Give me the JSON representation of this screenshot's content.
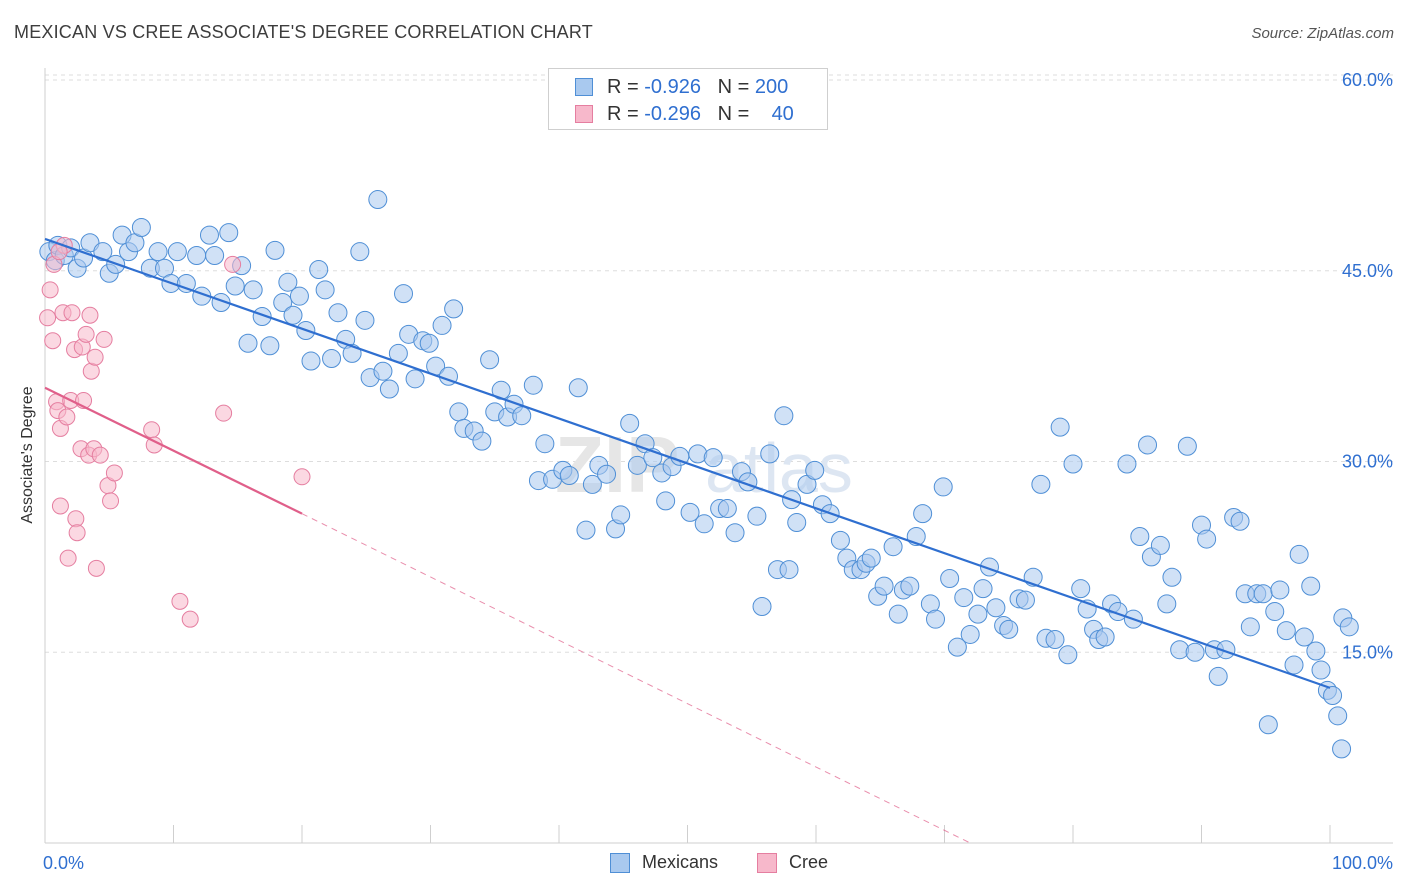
{
  "title": "MEXICAN VS CREE ASSOCIATE'S DEGREE CORRELATION CHART",
  "source": "Source: ZipAtlas.com",
  "legend": {
    "mexicans": {
      "r_label": "R = ",
      "r_value": "-0.926",
      "n_label": "N = ",
      "n_value": "200"
    },
    "cree": {
      "r_label": "R = ",
      "r_value": "-0.296",
      "n_label": "N = ",
      "n_value": "40"
    }
  },
  "bottom_legend": {
    "mexicans": "Mexicans",
    "cree": "Cree"
  },
  "colors": {
    "mexicans_fill": "#a9c9ef",
    "mexicans_stroke": "#4f8fd6",
    "mexicans_line": "#2f6fd0",
    "cree_fill": "#f7b8cb",
    "cree_stroke": "#e57ea0",
    "cree_line": "#e05f8a",
    "tick_label": "#2f6fd0",
    "grid": "#dddddd"
  },
  "chart_data": {
    "type": "scatter",
    "xlabel": "",
    "ylabel": "Associate's Degree",
    "xlim": [
      0,
      100
    ],
    "ylim": [
      0,
      60
    ],
    "x_tick_labels": [
      "0.0%",
      "100.0%"
    ],
    "y_ticks": [
      15,
      30,
      45,
      60
    ],
    "y_tick_labels": [
      "15.0%",
      "30.0%",
      "45.0%",
      "60.0%"
    ],
    "grid": "horizontal dashed",
    "legend_position": "top-center",
    "series": [
      {
        "name": "Mexicans",
        "r": -0.926,
        "n": 200,
        "trend": {
          "x": [
            0,
            100
          ],
          "y": [
            47.5,
            12.2
          ],
          "style": "solid"
        },
        "points": [
          [
            0.3,
            46.5
          ],
          [
            0.8,
            45.8
          ],
          [
            1.0,
            47.0
          ],
          [
            1.5,
            46.2
          ],
          [
            2.0,
            46.8
          ],
          [
            2.5,
            45.2
          ],
          [
            3.0,
            46.0
          ],
          [
            3.5,
            47.2
          ],
          [
            4.5,
            46.5
          ],
          [
            5.0,
            44.8
          ],
          [
            5.5,
            45.5
          ],
          [
            6.0,
            47.8
          ],
          [
            6.5,
            46.5
          ],
          [
            7.0,
            47.2
          ],
          [
            7.5,
            48.4
          ],
          [
            8.2,
            45.2
          ],
          [
            8.8,
            46.5
          ],
          [
            9.3,
            45.2
          ],
          [
            9.8,
            44.0
          ],
          [
            10.3,
            46.5
          ],
          [
            11.0,
            44.0
          ],
          [
            11.8,
            46.2
          ],
          [
            12.2,
            43.0
          ],
          [
            12.8,
            47.8
          ],
          [
            13.2,
            46.2
          ],
          [
            13.7,
            42.5
          ],
          [
            14.3,
            48.0
          ],
          [
            14.8,
            43.8
          ],
          [
            15.3,
            45.4
          ],
          [
            15.8,
            39.3
          ],
          [
            16.2,
            43.5
          ],
          [
            16.9,
            41.4
          ],
          [
            17.5,
            39.1
          ],
          [
            17.9,
            46.6
          ],
          [
            18.5,
            42.5
          ],
          [
            18.9,
            44.1
          ],
          [
            19.3,
            41.5
          ],
          [
            19.8,
            43.0
          ],
          [
            20.3,
            40.3
          ],
          [
            20.7,
            37.9
          ],
          [
            21.3,
            45.1
          ],
          [
            21.8,
            43.5
          ],
          [
            22.3,
            38.1
          ],
          [
            22.8,
            41.7
          ],
          [
            23.4,
            39.6
          ],
          [
            23.9,
            38.5
          ],
          [
            24.5,
            46.5
          ],
          [
            24.9,
            41.1
          ],
          [
            25.3,
            36.6
          ],
          [
            25.9,
            50.6
          ],
          [
            26.3,
            37.1
          ],
          [
            26.8,
            35.7
          ],
          [
            27.5,
            38.5
          ],
          [
            27.9,
            43.2
          ],
          [
            28.3,
            40.0
          ],
          [
            28.8,
            36.5
          ],
          [
            29.4,
            39.5
          ],
          [
            29.9,
            39.3
          ],
          [
            30.4,
            37.5
          ],
          [
            30.9,
            40.7
          ],
          [
            31.4,
            36.7
          ],
          [
            31.8,
            42.0
          ],
          [
            32.2,
            33.9
          ],
          [
            32.6,
            32.6
          ],
          [
            33.4,
            32.4
          ],
          [
            34.0,
            31.6
          ],
          [
            34.6,
            38.0
          ],
          [
            35.0,
            33.9
          ],
          [
            35.5,
            35.6
          ],
          [
            36.0,
            33.5
          ],
          [
            36.5,
            34.5
          ],
          [
            37.1,
            33.6
          ],
          [
            38.0,
            36.0
          ],
          [
            38.4,
            28.5
          ],
          [
            38.9,
            31.4
          ],
          [
            39.5,
            28.6
          ],
          [
            40.3,
            29.3
          ],
          [
            40.8,
            28.9
          ],
          [
            41.5,
            35.8
          ],
          [
            42.1,
            24.6
          ],
          [
            42.6,
            28.2
          ],
          [
            43.1,
            29.7
          ],
          [
            43.7,
            29.0
          ],
          [
            44.4,
            24.7
          ],
          [
            44.8,
            25.8
          ],
          [
            45.5,
            33.0
          ],
          [
            46.1,
            29.7
          ],
          [
            46.7,
            31.4
          ],
          [
            47.3,
            30.3
          ],
          [
            48.0,
            29.1
          ],
          [
            48.3,
            26.9
          ],
          [
            48.8,
            29.6
          ],
          [
            49.4,
            30.4
          ],
          [
            50.2,
            26.0
          ],
          [
            50.8,
            30.6
          ],
          [
            51.3,
            25.1
          ],
          [
            52.0,
            30.3
          ],
          [
            52.5,
            26.3
          ],
          [
            53.1,
            26.3
          ],
          [
            53.7,
            24.4
          ],
          [
            54.2,
            29.2
          ],
          [
            54.7,
            28.4
          ],
          [
            55.4,
            25.7
          ],
          [
            55.8,
            18.6
          ],
          [
            56.4,
            30.6
          ],
          [
            57.0,
            21.5
          ],
          [
            57.5,
            33.6
          ],
          [
            57.9,
            21.5
          ],
          [
            58.1,
            27.0
          ],
          [
            58.5,
            25.2
          ],
          [
            59.3,
            28.2
          ],
          [
            59.9,
            29.3
          ],
          [
            60.5,
            26.6
          ],
          [
            61.1,
            25.9
          ],
          [
            61.9,
            23.8
          ],
          [
            62.4,
            22.4
          ],
          [
            62.9,
            21.5
          ],
          [
            63.5,
            21.5
          ],
          [
            63.9,
            22.0
          ],
          [
            64.3,
            22.4
          ],
          [
            64.8,
            19.4
          ],
          [
            65.3,
            20.2
          ],
          [
            66.0,
            23.3
          ],
          [
            66.4,
            18.0
          ],
          [
            66.8,
            19.9
          ],
          [
            67.3,
            20.2
          ],
          [
            67.8,
            24.1
          ],
          [
            68.3,
            25.9
          ],
          [
            68.9,
            18.8
          ],
          [
            69.3,
            17.6
          ],
          [
            69.9,
            28.0
          ],
          [
            70.4,
            20.8
          ],
          [
            71.0,
            15.4
          ],
          [
            71.5,
            19.3
          ],
          [
            72.0,
            16.4
          ],
          [
            72.6,
            18.0
          ],
          [
            73.0,
            20.0
          ],
          [
            73.5,
            21.7
          ],
          [
            74.0,
            18.5
          ],
          [
            74.6,
            17.1
          ],
          [
            75.0,
            16.8
          ],
          [
            75.8,
            19.2
          ],
          [
            76.3,
            19.1
          ],
          [
            76.9,
            20.9
          ],
          [
            77.5,
            28.2
          ],
          [
            77.9,
            16.1
          ],
          [
            78.6,
            16.0
          ],
          [
            79.0,
            32.7
          ],
          [
            79.6,
            14.8
          ],
          [
            80.0,
            29.8
          ],
          [
            80.6,
            20.0
          ],
          [
            81.1,
            18.4
          ],
          [
            81.6,
            16.8
          ],
          [
            82.0,
            16.0
          ],
          [
            82.5,
            16.2
          ],
          [
            83.0,
            18.8
          ],
          [
            83.5,
            18.2
          ],
          [
            84.2,
            29.8
          ],
          [
            84.7,
            17.6
          ],
          [
            85.2,
            24.1
          ],
          [
            85.8,
            31.3
          ],
          [
            86.1,
            22.5
          ],
          [
            86.8,
            23.4
          ],
          [
            87.3,
            18.8
          ],
          [
            87.7,
            20.9
          ],
          [
            88.3,
            15.2
          ],
          [
            88.9,
            31.2
          ],
          [
            89.5,
            15.0
          ],
          [
            90.0,
            25.0
          ],
          [
            90.4,
            23.9
          ],
          [
            91.0,
            15.2
          ],
          [
            91.3,
            13.1
          ],
          [
            91.9,
            15.2
          ],
          [
            92.5,
            25.6
          ],
          [
            93.0,
            25.3
          ],
          [
            93.4,
            19.6
          ],
          [
            93.8,
            17.0
          ],
          [
            94.3,
            19.6
          ],
          [
            94.8,
            19.6
          ],
          [
            95.2,
            9.3
          ],
          [
            95.7,
            18.2
          ],
          [
            96.1,
            19.9
          ],
          [
            96.6,
            16.7
          ],
          [
            97.2,
            14.0
          ],
          [
            97.6,
            22.7
          ],
          [
            98.0,
            16.2
          ],
          [
            98.5,
            20.2
          ],
          [
            98.9,
            15.1
          ],
          [
            99.3,
            13.6
          ],
          [
            99.8,
            12.0
          ],
          [
            100.2,
            11.6
          ],
          [
            100.6,
            10.0
          ],
          [
            101.0,
            17.7
          ],
          [
            100.9,
            7.4
          ],
          [
            101.5,
            17.0
          ]
        ]
      },
      {
        "name": "Cree",
        "r": -0.296,
        "n": 40,
        "trend": {
          "x": [
            0,
            20,
            72
          ],
          "y": [
            35.8,
            25.9,
            0
          ],
          "style": "solid then dashed"
        },
        "points": [
          [
            0.2,
            41.3
          ],
          [
            0.4,
            43.5
          ],
          [
            0.6,
            39.5
          ],
          [
            0.7,
            45.5
          ],
          [
            0.9,
            34.7
          ],
          [
            1.0,
            34.0
          ],
          [
            1.2,
            32.6
          ],
          [
            1.2,
            26.5
          ],
          [
            1.4,
            41.7
          ],
          [
            1.5,
            47.0
          ],
          [
            1.7,
            33.5
          ],
          [
            1.8,
            22.4
          ],
          [
            2.0,
            34.8
          ],
          [
            2.1,
            41.7
          ],
          [
            2.3,
            38.8
          ],
          [
            2.4,
            25.5
          ],
          [
            2.5,
            24.4
          ],
          [
            2.8,
            31.0
          ],
          [
            2.9,
            39.0
          ],
          [
            3.0,
            34.8
          ],
          [
            3.2,
            40.0
          ],
          [
            3.4,
            30.5
          ],
          [
            3.5,
            41.5
          ],
          [
            3.6,
            37.1
          ],
          [
            3.8,
            31.0
          ],
          [
            3.9,
            38.2
          ],
          [
            4.0,
            21.6
          ],
          [
            4.3,
            30.5
          ],
          [
            4.6,
            39.6
          ],
          [
            4.9,
            28.1
          ],
          [
            5.1,
            26.9
          ],
          [
            5.4,
            29.1
          ],
          [
            8.3,
            32.5
          ],
          [
            8.5,
            31.3
          ],
          [
            10.5,
            19.0
          ],
          [
            11.3,
            17.6
          ],
          [
            13.9,
            33.8
          ],
          [
            14.6,
            45.5
          ],
          [
            20.0,
            28.8
          ],
          [
            1.1,
            46.5
          ]
        ]
      }
    ]
  }
}
